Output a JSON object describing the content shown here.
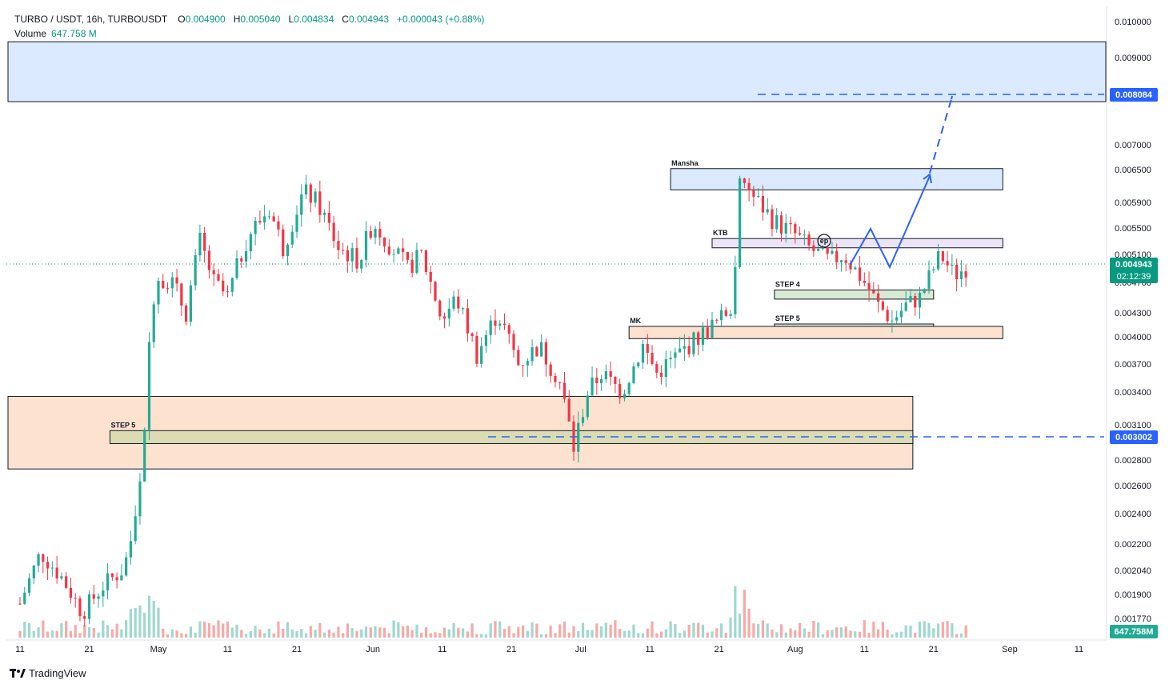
{
  "header": {
    "symbol": "TURBO / USDT, 16h, TURBOUSDT",
    "open_label": "O",
    "open": "0.004900",
    "high_label": "H",
    "high": "0.005040",
    "low_label": "L",
    "low": "0.004834",
    "close_label": "C",
    "close": "0.004943",
    "change": "+0.000043 (+0.88%)",
    "volume_label": "Volume",
    "volume": "647.758 M"
  },
  "branding": {
    "name": "TradingView"
  },
  "colors": {
    "up": "#22ab94",
    "down": "#f23645",
    "volume_up": "#9fd8cf",
    "volume_down": "#f7a9a7",
    "projection": "#2962ff",
    "blue_zone": "#dbeafe",
    "orange_zone": "#fde2d0",
    "green_zone": "#d8ead5",
    "olive_zone": "#dcdcb4",
    "purple_zone": "#ece4f7",
    "last_price": "#089981"
  },
  "chart_data": {
    "type": "candlestick",
    "symbol": "TURBOUSDT",
    "interval": "16h",
    "y_axis_ticks": [
      "0.010000",
      "0.009000",
      "0.008084",
      "0.007000",
      "0.006500",
      "0.005900",
      "0.005500",
      "0.005100",
      "0.004943",
      "0.004700",
      "0.004300",
      "0.004000",
      "0.003700",
      "0.003400",
      "0.003100",
      "0.003002",
      "0.002800",
      "0.002600",
      "0.002400",
      "0.002200",
      "0.002040",
      "0.001900",
      "0.001770"
    ],
    "y_tick_values": [
      0.01,
      0.009,
      0.007,
      0.0065,
      0.0059,
      0.0055,
      0.0051,
      0.0047,
      0.0043,
      0.004,
      0.0037,
      0.0034,
      0.0031,
      0.0028,
      0.0026,
      0.0024,
      0.0022,
      0.00204,
      0.0019,
      0.00177
    ],
    "x_axis_ticks": [
      "11",
      "21",
      "May",
      "11",
      "21",
      "Jun",
      "11",
      "21",
      "Jul",
      "11",
      "21",
      "Aug",
      "11",
      "21",
      "Sep",
      "11"
    ],
    "last_price": {
      "value": 0.004943,
      "label": "0.004943",
      "countdown": "02:12:39"
    },
    "volume_last": "647.758M",
    "target_price": {
      "value": 0.008084,
      "label": "0.008084"
    },
    "support_price": {
      "value": 0.003002,
      "label": "0.003002"
    },
    "zones": [
      {
        "name": "upper-target-zone",
        "label": "",
        "y_low": 0.00799,
        "y_high": 0.00944,
        "x_start": "Apr 3",
        "x_end": "Sep 18",
        "color": "blue"
      },
      {
        "name": "mansha-zone",
        "label": "Mansha",
        "y_low": 0.00613,
        "y_high": 0.00652,
        "x_start": "Jul 14",
        "x_end": "Aug 31",
        "color": "blue"
      },
      {
        "name": "ktb-zone",
        "label": "KTB",
        "y_low": 0.0052,
        "y_high": 0.00534,
        "x_start": "Jul 20",
        "x_end": "Aug 31",
        "color": "purple"
      },
      {
        "name": "step4-zone",
        "label": "STEP 4",
        "y_low": 0.00448,
        "y_high": 0.0046,
        "x_start": "Jul 29",
        "x_end": "Aug 21",
        "color": "green"
      },
      {
        "name": "step5-small-zone",
        "label": "STEP 5",
        "y_low": 0.00408,
        "y_high": 0.00416,
        "x_start": "Jul 29",
        "x_end": "Aug 21",
        "color": "green"
      },
      {
        "name": "mk-zone",
        "label": "MK",
        "y_low": 0.00398,
        "y_high": 0.00413,
        "x_start": "Jul 8",
        "x_end": "Aug 31",
        "color": "orange"
      },
      {
        "name": "lower-demand-zone",
        "label": "",
        "y_low": 0.00273,
        "y_high": 0.00336,
        "x_start": "Apr 3",
        "x_end": "Aug 18",
        "color": "orange"
      },
      {
        "name": "step5-large-zone",
        "label": "STEP 5",
        "y_low": 0.00294,
        "y_high": 0.00305,
        "x_start": "Apr 24",
        "x_end": "Aug 18",
        "color": "olive"
      }
    ],
    "projection_path": [
      {
        "date": "Aug 13",
        "price": 0.00494
      },
      {
        "date": "Aug 17",
        "price": 0.0054
      },
      {
        "date": "Aug 20",
        "price": 0.00488
      },
      {
        "date": "Aug 25",
        "price": 0.00642
      },
      {
        "date": "Aug 28",
        "price": 0.008
      }
    ],
    "annotation": "ep"
  }
}
